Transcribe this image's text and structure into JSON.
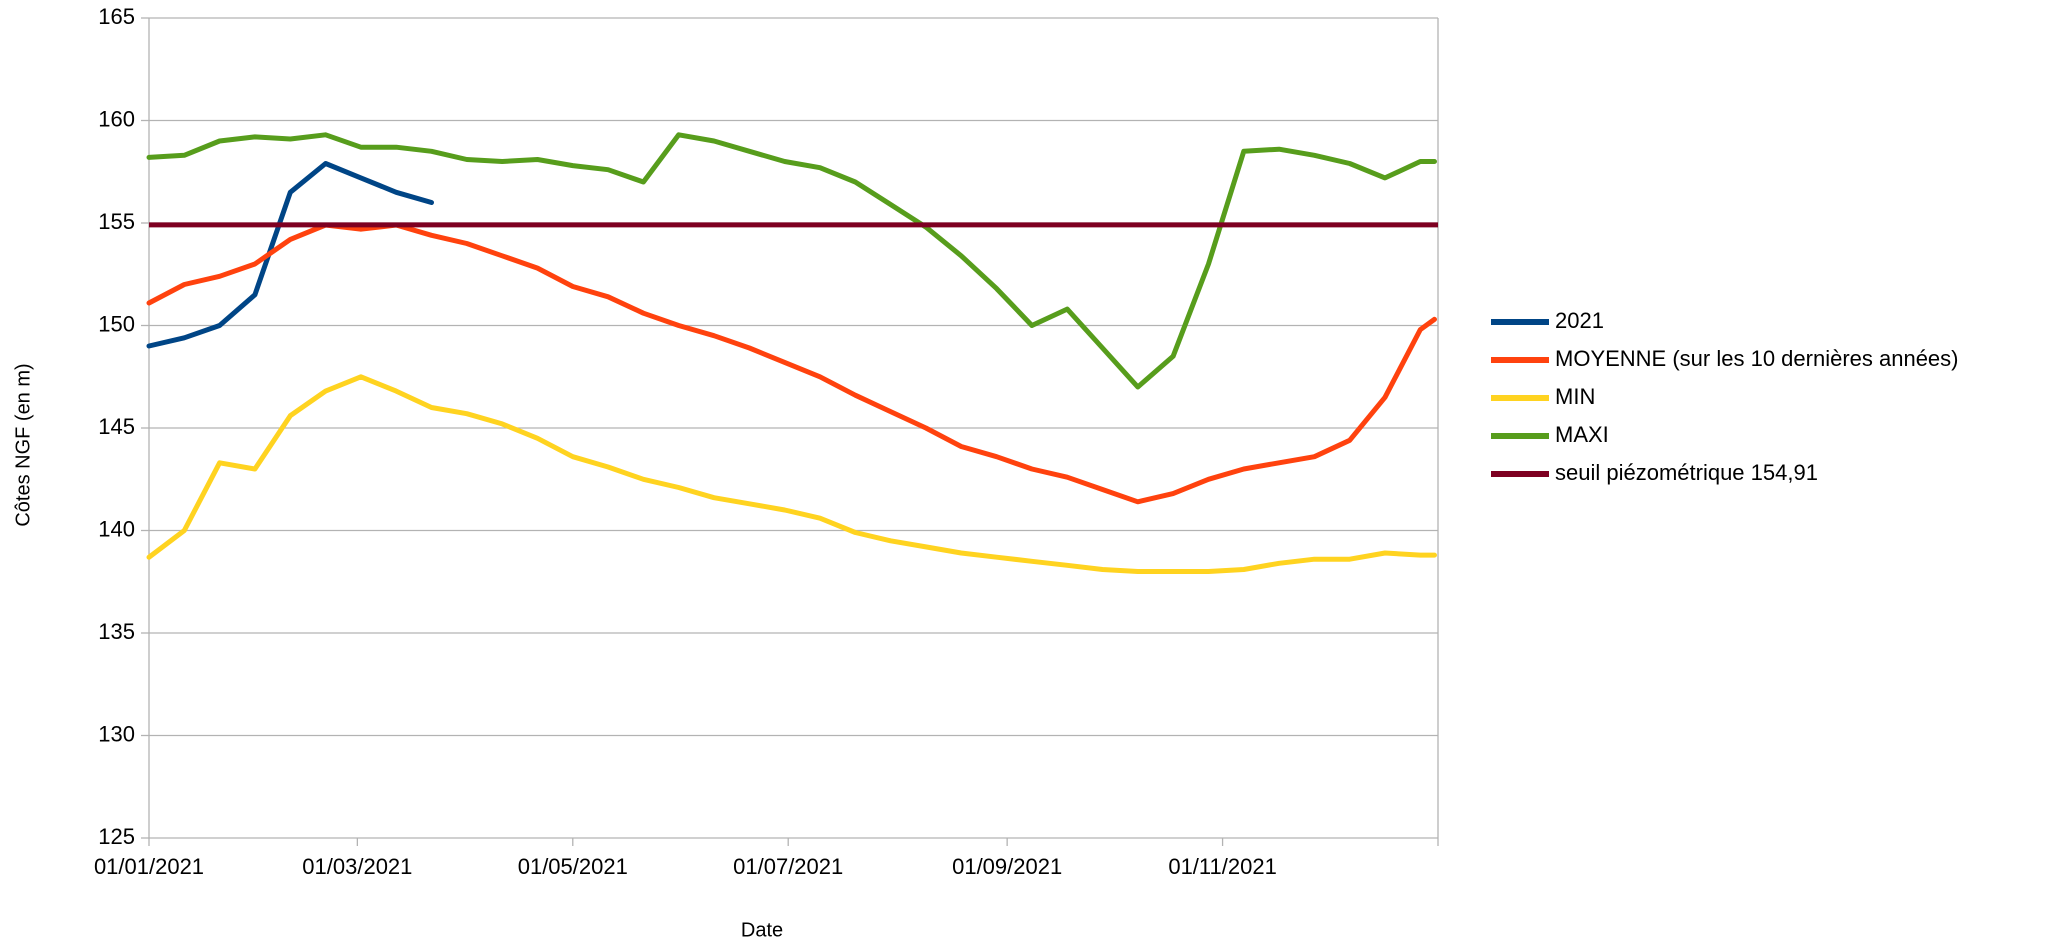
{
  "chart_data": {
    "type": "line",
    "y_label": "Côtes NGF (en m)",
    "x_label": "Date",
    "x": [
      "01/01/2021",
      "11/01/2021",
      "21/01/2021",
      "31/01/2021",
      "10/02/2021",
      "20/02/2021",
      "02/03/2021",
      "12/03/2021",
      "22/03/2021",
      "01/04/2021",
      "11/04/2021",
      "21/04/2021",
      "01/05/2021",
      "11/05/2021",
      "21/05/2021",
      "31/05/2021",
      "10/06/2021",
      "20/06/2021",
      "30/06/2021",
      "10/07/2021",
      "20/07/2021",
      "30/07/2021",
      "09/08/2021",
      "19/08/2021",
      "29/08/2021",
      "08/09/2021",
      "18/09/2021",
      "28/09/2021",
      "08/10/2021",
      "18/10/2021",
      "28/10/2021",
      "07/11/2021",
      "17/11/2021",
      "27/11/2021",
      "07/12/2021",
      "17/12/2021",
      "27/12/2021",
      "31/12/2021"
    ],
    "series": [
      {
        "name": "2021",
        "color": "#004586",
        "values": [
          149.0,
          149.4,
          150.0,
          151.5,
          156.5,
          157.9,
          157.2,
          156.5,
          156.0,
          null,
          null,
          null,
          null,
          null,
          null,
          null,
          null,
          null,
          null,
          null,
          null,
          null,
          null,
          null,
          null,
          null,
          null,
          null,
          null,
          null,
          null,
          null,
          null,
          null,
          null,
          null,
          null,
          null
        ]
      },
      {
        "name": "MOYENNE (sur les 10 dernières années)",
        "color": "#ff420e",
        "values": [
          151.1,
          152.0,
          152.4,
          153.0,
          154.2,
          154.9,
          154.7,
          154.9,
          154.4,
          154.0,
          153.4,
          152.8,
          151.9,
          151.4,
          150.6,
          150.0,
          149.5,
          148.9,
          148.2,
          147.5,
          146.6,
          145.8,
          145.0,
          144.1,
          143.6,
          143.0,
          142.6,
          142.0,
          141.4,
          141.8,
          142.5,
          143.0,
          143.3,
          143.6,
          144.4,
          146.5,
          149.8,
          150.3
        ]
      },
      {
        "name": "MIN",
        "color": "#ffd320",
        "values": [
          138.7,
          140.0,
          143.3,
          143.0,
          145.6,
          146.8,
          147.5,
          146.8,
          146.0,
          145.7,
          145.2,
          144.5,
          143.6,
          143.1,
          142.5,
          142.1,
          141.6,
          141.3,
          141.0,
          140.6,
          139.9,
          139.5,
          139.2,
          138.9,
          138.7,
          138.5,
          138.3,
          138.1,
          138.0,
          138.0,
          138.0,
          138.1,
          138.4,
          138.6,
          138.6,
          138.9,
          138.8,
          138.8
        ]
      },
      {
        "name": "MAXI",
        "color": "#579d1c",
        "values": [
          158.2,
          158.3,
          159.0,
          159.2,
          159.1,
          159.3,
          158.7,
          158.7,
          158.5,
          158.1,
          158.0,
          158.1,
          157.8,
          157.6,
          157.0,
          159.3,
          159.0,
          158.5,
          158.0,
          157.7,
          157.0,
          155.9,
          154.8,
          153.4,
          151.8,
          150.0,
          150.8,
          148.9,
          147.0,
          148.5,
          153.0,
          158.5,
          158.6,
          158.3,
          157.9,
          157.2,
          158.0,
          158.0
        ]
      }
    ],
    "hlines": [
      {
        "name": "seuil piézométrique 154,91",
        "color": "#7e0021",
        "value": 154.91
      }
    ],
    "xlim": [
      "01/01/2021",
      "31/12/2021"
    ],
    "xticks": [
      "01/01/2021",
      "01/03/2021",
      "01/05/2021",
      "01/07/2021",
      "01/09/2021",
      "01/11/2021"
    ],
    "ylim": [
      125,
      165
    ],
    "yticks": [
      125,
      130,
      135,
      140,
      145,
      150,
      155,
      160,
      165
    ],
    "grid": true,
    "legend": "right"
  }
}
